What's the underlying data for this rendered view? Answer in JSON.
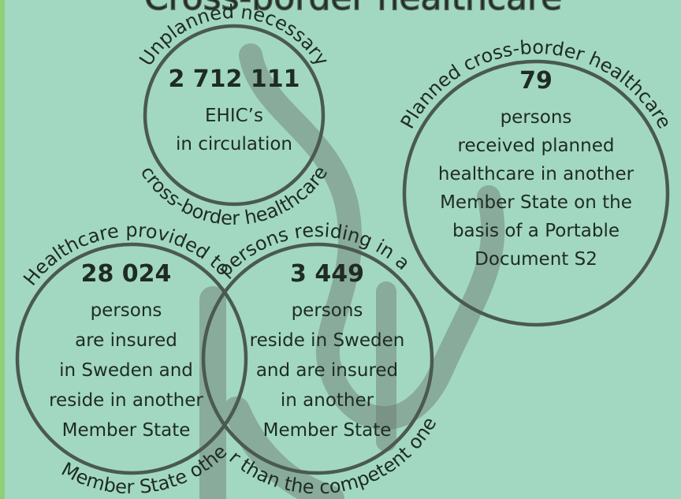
{
  "title": "Cross-border healthcare",
  "unplanned": {
    "arc_top": "Unplanned necessary",
    "arc_bottom": "cross-border healthcare",
    "number": "2 712 111",
    "lines": [
      "EHIC’s",
      "in circulation"
    ]
  },
  "planned": {
    "arc_top": "Planned cross-border healthcare",
    "number": "79",
    "lines": [
      "persons",
      "received planned",
      "healthcare in another",
      "Member State on the",
      "basis of a Portable",
      "Document S2"
    ]
  },
  "residing": {
    "arc_top": "Healthcare provided to persons residing in a",
    "arc_bottom": "Member State other than the competent one",
    "circles": [
      {
        "number": "28 024",
        "lines": [
          "persons",
          "are insured",
          "in Sweden and",
          "reside in another",
          "Member State"
        ]
      },
      {
        "number": "3 449",
        "lines": [
          "persons",
          "reside in Sweden",
          "and are insured",
          "in another",
          "Member State"
        ]
      }
    ]
  }
}
